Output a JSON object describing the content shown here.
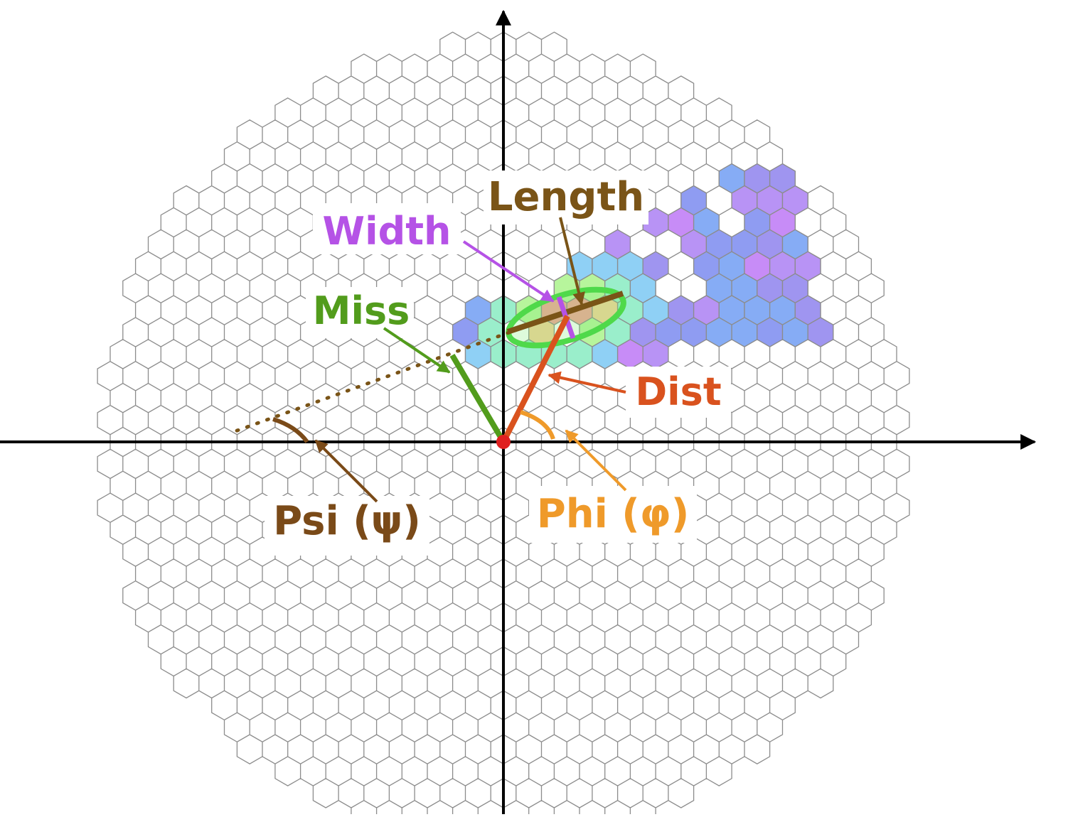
{
  "labels": {
    "length": "Length",
    "width": "Width",
    "miss": "Miss",
    "dist": "Dist",
    "phi": "Phi (φ)",
    "psi": "Psi (ψ)"
  },
  "colors": {
    "length": "#7a5417",
    "width": "#b552e6",
    "miss": "#529c1c",
    "dist": "#d9521e",
    "phi": "#ef9a2a",
    "psi": "#7a4a18",
    "axis": "#000000",
    "hex_stroke": "#8c8c8c",
    "ellipse": "#4fd94a",
    "origin": "#e02020"
  },
  "icons": {
    "arrow": "arrow-icon",
    "hexagon": "hexagon-icon"
  }
}
